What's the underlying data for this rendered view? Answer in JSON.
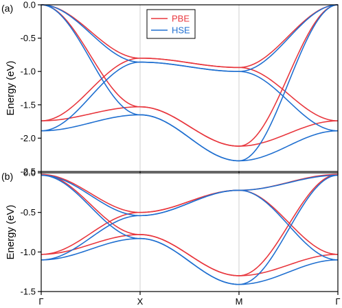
{
  "chart_data": [
    {
      "panel_label": "(a)",
      "type": "line",
      "ylabel": "Energy (eV)",
      "ylim": [
        -2.5,
        0.0
      ],
      "yticks": [
        "0.0",
        "-0.5",
        "-1.0",
        "-1.5",
        "-2.0",
        "-2.5"
      ],
      "ytick_values": [
        0.0,
        -0.5,
        -1.0,
        -1.5,
        -2.0,
        -2.5
      ],
      "xticks": [],
      "xtick_values": [
        0,
        1,
        2,
        3
      ],
      "xlim": [
        0,
        3
      ],
      "vlines": [
        1,
        2
      ],
      "legend": {
        "placement": "top-center",
        "entries": [
          "PBE",
          "HSE"
        ]
      },
      "series": [
        {
          "name": "PBE",
          "color": "#e8363d",
          "curves": [
            [
              [
                0,
                0
              ],
              [
                1,
                -0.8
              ],
              [
                2,
                -0.94
              ],
              [
                3,
                -1.74
              ]
            ],
            [
              [
                0,
                0
              ],
              [
                1,
                -1.53
              ],
              [
                2,
                -2.12
              ],
              [
                3,
                -1.74
              ]
            ],
            [
              [
                0,
                -1.74
              ],
              [
                1,
                -0.8
              ],
              [
                2,
                -0.94
              ],
              [
                3,
                0
              ]
            ],
            [
              [
                0,
                -1.74
              ],
              [
                1,
                -1.53
              ],
              [
                2,
                -2.12
              ],
              [
                3,
                0
              ]
            ]
          ]
        },
        {
          "name": "HSE",
          "color": "#1f6fd0",
          "curves": [
            [
              [
                0,
                0
              ],
              [
                1,
                -0.86
              ],
              [
                2,
                -1.0
              ],
              [
                3,
                -1.89
              ]
            ],
            [
              [
                0,
                0
              ],
              [
                1,
                -1.65
              ],
              [
                2,
                -2.34
              ],
              [
                3,
                -1.89
              ]
            ],
            [
              [
                0,
                -1.89
              ],
              [
                1,
                -0.86
              ],
              [
                2,
                -1.0
              ],
              [
                3,
                0
              ]
            ],
            [
              [
                0,
                -1.89
              ],
              [
                1,
                -1.65
              ],
              [
                2,
                -2.34
              ],
              [
                3,
                0
              ]
            ]
          ]
        }
      ]
    },
    {
      "panel_label": "(b)",
      "type": "line",
      "ylabel": "Energy (eV)",
      "ylim": [
        -1.5,
        0.0
      ],
      "yticks": [
        "0.0",
        "-0.5",
        "-1.0",
        "-1.5"
      ],
      "ytick_values": [
        0.0,
        -0.5,
        -1.0,
        -1.5
      ],
      "xticks": [
        "Γ",
        "X",
        "M",
        "Γ"
      ],
      "xtick_values": [
        0,
        1,
        2,
        3
      ],
      "xlim": [
        0,
        3
      ],
      "vlines": [
        1,
        2
      ],
      "series": [
        {
          "name": "PBE",
          "color": "#e8363d",
          "curves": [
            [
              [
                0,
                -0.02
              ],
              [
                1,
                -0.5
              ],
              [
                2,
                -0.22
              ],
              [
                3,
                -1.03
              ]
            ],
            [
              [
                0,
                -0.02
              ],
              [
                1,
                -0.78
              ],
              [
                2,
                -1.3
              ],
              [
                3,
                -1.03
              ]
            ],
            [
              [
                0,
                -1.03
              ],
              [
                1,
                -0.5
              ],
              [
                2,
                -0.22
              ],
              [
                3,
                -0.02
              ]
            ],
            [
              [
                0,
                -1.03
              ],
              [
                1,
                -0.78
              ],
              [
                2,
                -1.3
              ],
              [
                3,
                -0.02
              ]
            ]
          ]
        },
        {
          "name": "HSE",
          "color": "#1f6fd0",
          "curves": [
            [
              [
                0,
                -0.03
              ],
              [
                1,
                -0.54
              ],
              [
                2,
                -0.22
              ],
              [
                3,
                -1.1
              ]
            ],
            [
              [
                0,
                -0.03
              ],
              [
                1,
                -0.83
              ],
              [
                2,
                -1.41
              ],
              [
                3,
                -1.1
              ]
            ],
            [
              [
                0,
                -1.1
              ],
              [
                1,
                -0.54
              ],
              [
                2,
                -0.22
              ],
              [
                3,
                -0.03
              ]
            ],
            [
              [
                0,
                -1.1
              ],
              [
                1,
                -0.83
              ],
              [
                2,
                -1.41
              ],
              [
                3,
                -0.03
              ]
            ]
          ]
        }
      ]
    }
  ]
}
